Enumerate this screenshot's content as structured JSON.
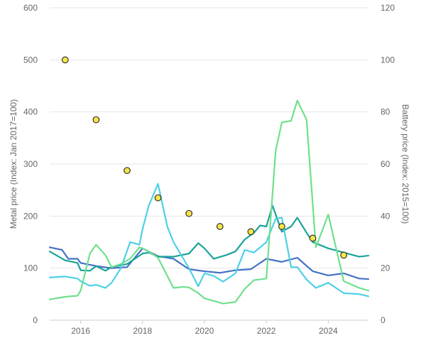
{
  "chart_data": {
    "type": "line",
    "xlabel": "",
    "ylabel_left": "Metal price (Index: Jan 2017=100)",
    "ylabel_right": "Battery price (Index: 2015=100)",
    "xlim": [
      2015.0,
      2025.3
    ],
    "ylim_left": [
      0,
      600
    ],
    "ylim_right": [
      0,
      120
    ],
    "x_ticks": [
      2016,
      2018,
      2020,
      2022,
      2024
    ],
    "y_ticks_left": [
      0,
      100,
      200,
      300,
      400,
      500,
      600
    ],
    "y_ticks_right": [
      0,
      20,
      40,
      60,
      80,
      100,
      120
    ],
    "grid": "horizontal",
    "legend": "none",
    "series": [
      {
        "color": "#4472c4",
        "axis": "left",
        "x": [
          2015.0,
          2015.4,
          2015.6,
          2015.9,
          2016.0,
          2016.5,
          2017.0,
          2017.5,
          2018.0,
          2018.5,
          2019.0,
          2019.5,
          2020.0,
          2020.5,
          2021.0,
          2021.5,
          2022.0,
          2022.5,
          2023.0,
          2023.5,
          2024.0,
          2024.5,
          2025.0,
          2025.3
        ],
        "y": [
          140,
          135,
          118,
          118,
          110,
          104,
          100,
          102,
          138,
          123,
          118,
          98,
          94,
          91,
          96,
          98,
          118,
          112,
          120,
          94,
          86,
          90,
          80,
          79
        ]
      },
      {
        "color": "#19a39a",
        "axis": "left",
        "x": [
          2015.0,
          2015.5,
          2015.9,
          2016.0,
          2016.3,
          2016.5,
          2016.8,
          2017.0,
          2017.5,
          2018.0,
          2018.2,
          2018.5,
          2019.0,
          2019.5,
          2019.8,
          2020.0,
          2020.3,
          2020.7,
          2021.0,
          2021.3,
          2021.6,
          2021.8,
          2022.0,
          2022.2,
          2022.5,
          2022.8,
          2023.0,
          2023.3,
          2023.5,
          2024.0,
          2024.5,
          2025.0,
          2025.3
        ],
        "y": [
          132,
          115,
          110,
          96,
          95,
          104,
          95,
          102,
          108,
          128,
          130,
          122,
          122,
          128,
          148,
          138,
          118,
          125,
          132,
          155,
          168,
          182,
          180,
          220,
          170,
          180,
          197,
          168,
          150,
          138,
          130,
          122,
          124
        ]
      },
      {
        "color": "#4dd0e6",
        "axis": "left",
        "x": [
          2015.0,
          2015.5,
          2015.9,
          2016.0,
          2016.3,
          2016.5,
          2016.8,
          2017.0,
          2017.3,
          2017.6,
          2017.9,
          2018.0,
          2018.2,
          2018.5,
          2018.8,
          2019.0,
          2019.3,
          2019.5,
          2019.8,
          2020.0,
          2020.3,
          2020.6,
          2021.0,
          2021.3,
          2021.6,
          2022.0,
          2022.3,
          2022.5,
          2022.8,
          2023.0,
          2023.3,
          2023.6,
          2024.0,
          2024.5,
          2025.0,
          2025.3
        ],
        "y": [
          82,
          84,
          80,
          75,
          66,
          68,
          62,
          72,
          100,
          150,
          145,
          175,
          220,
          262,
          180,
          150,
          120,
          100,
          65,
          90,
          85,
          74,
          90,
          135,
          130,
          150,
          195,
          197,
          102,
          102,
          78,
          62,
          72,
          52,
          50,
          46
        ]
      },
      {
        "color": "#6fe08c",
        "axis": "left",
        "x": [
          2015.0,
          2015.5,
          2015.9,
          2016.0,
          2016.3,
          2016.5,
          2016.8,
          2017.0,
          2017.3,
          2017.6,
          2017.9,
          2018.0,
          2018.2,
          2018.5,
          2018.8,
          2019.0,
          2019.3,
          2019.5,
          2019.8,
          2020.0,
          2020.3,
          2020.6,
          2021.0,
          2021.3,
          2021.6,
          2022.0,
          2022.3,
          2022.5,
          2022.8,
          2023.0,
          2023.3,
          2023.6,
          2024.0,
          2024.5,
          2025.0,
          2025.3
        ],
        "y": [
          40,
          45,
          47,
          57,
          128,
          145,
          125,
          102,
          108,
          118,
          140,
          138,
          132,
          120,
          85,
          62,
          64,
          63,
          52,
          42,
          37,
          32,
          35,
          60,
          77,
          80,
          325,
          380,
          383,
          422,
          385,
          140,
          203,
          75,
          62,
          57
        ]
      },
      {
        "color": "#f3e44a",
        "stroke": "#222222",
        "axis": "right",
        "style": "points",
        "x": [
          2015.5,
          2016.5,
          2017.5,
          2018.5,
          2019.5,
          2020.5,
          2021.5,
          2022.5,
          2023.5,
          2024.5
        ],
        "y": [
          100,
          77,
          57.5,
          47,
          41,
          36,
          34,
          36,
          31.5,
          25
        ]
      }
    ]
  }
}
